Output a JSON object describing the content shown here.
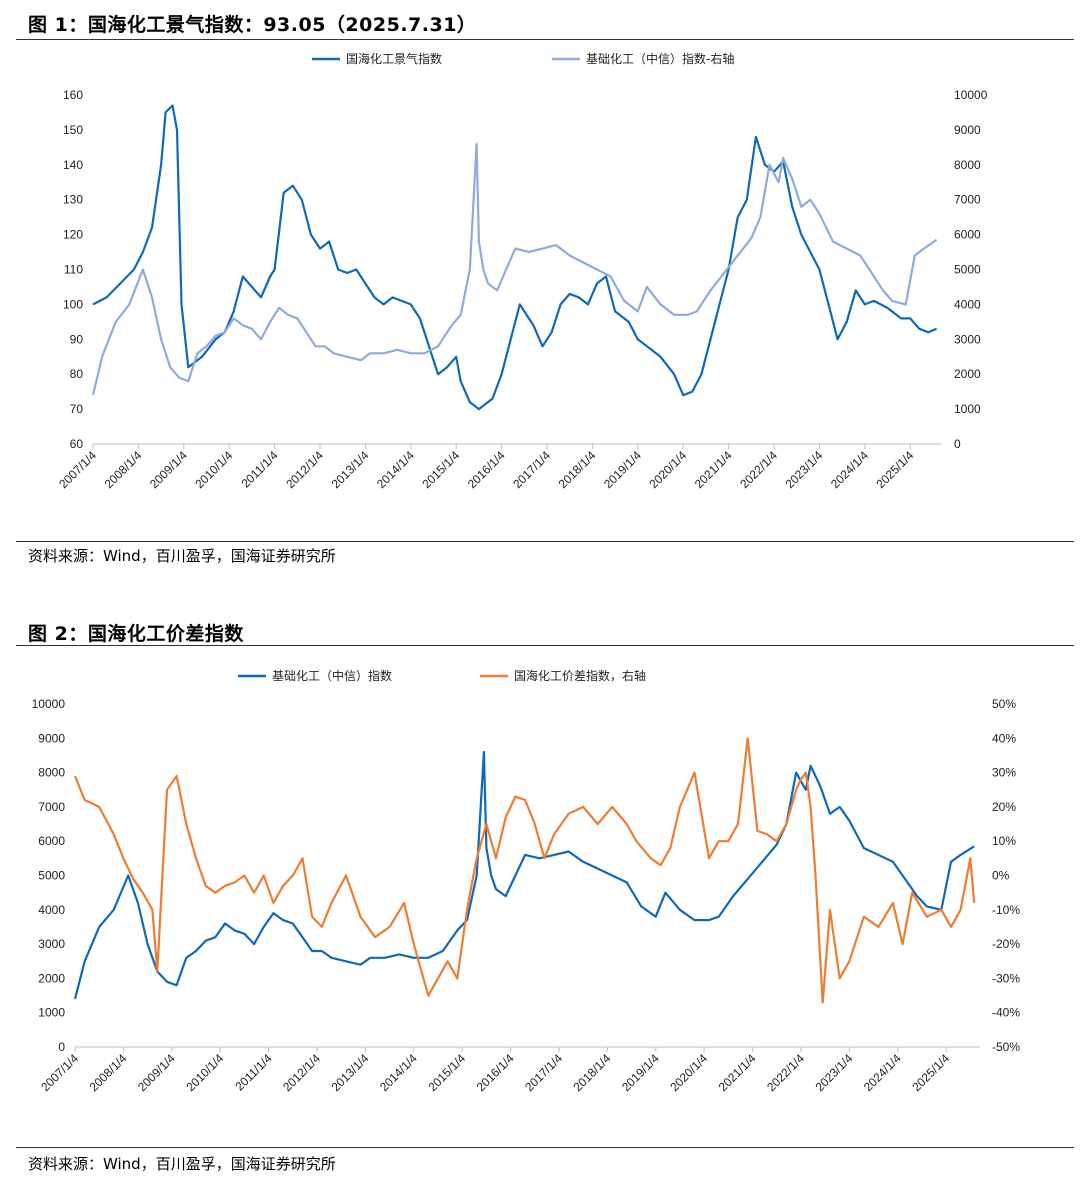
{
  "figure1": {
    "title": "图 1：国海化工景气指数：93.05（2025.7.31）",
    "source": "资料来源：Wind，百川盈孚，国海证券研究所"
  },
  "figure2": {
    "title": "图 2：国海化工价差指数",
    "source": "资料来源：Wind，百川盈孚，国海证券研究所"
  },
  "colors": {
    "dark_blue": "#1068b8",
    "light_blue": "#8faadc",
    "orange": "#ed7d31",
    "axis": "#bfbfbf"
  },
  "chart_data": [
    {
      "type": "line",
      "title": "图 1：国海化工景气指数：93.05（2025.7.31）",
      "categories": [
        "2007/1/4",
        "2008/1/4",
        "2009/1/4",
        "2010/1/4",
        "2011/1/4",
        "2012/1/4",
        "2013/1/4",
        "2014/1/4",
        "2015/1/4",
        "2016/1/4",
        "2017/1/4",
        "2018/1/4",
        "2019/1/4",
        "2020/1/4",
        "2021/1/4",
        "2022/1/4",
        "2023/1/4",
        "2024/1/4",
        "2025/1/4"
      ],
      "y_left": {
        "ylim": [
          60,
          160
        ],
        "ticks": [
          60,
          70,
          80,
          90,
          100,
          110,
          120,
          130,
          140,
          150,
          160
        ]
      },
      "y_right": {
        "ylim": [
          0,
          10000
        ],
        "ticks": [
          0,
          1000,
          2000,
          3000,
          4000,
          5000,
          6000,
          7000,
          8000,
          9000,
          10000
        ]
      },
      "legend_position": "top",
      "series": [
        {
          "name": "国海化工景气指数",
          "axis": "left",
          "color": "#1068b8",
          "x": [
            2007.0,
            2007.3,
            2007.6,
            2007.9,
            2008.1,
            2008.3,
            2008.5,
            2008.6,
            2008.75,
            2008.85,
            2008.95,
            2009.1,
            2009.4,
            2009.7,
            2009.9,
            2010.1,
            2010.3,
            2010.5,
            2010.7,
            2010.9,
            2011.0,
            2011.2,
            2011.4,
            2011.6,
            2011.8,
            2012.0,
            2012.2,
            2012.4,
            2012.6,
            2012.8,
            2013.0,
            2013.2,
            2013.4,
            2013.6,
            2013.8,
            2014.0,
            2014.2,
            2014.4,
            2014.6,
            2014.8,
            2015.0,
            2015.1,
            2015.3,
            2015.5,
            2015.8,
            2016.0,
            2016.2,
            2016.4,
            2016.7,
            2016.9,
            2017.1,
            2017.3,
            2017.5,
            2017.7,
            2017.9,
            2018.1,
            2018.3,
            2018.5,
            2018.8,
            2019.0,
            2019.2,
            2019.5,
            2019.8,
            2020.0,
            2020.2,
            2020.4,
            2020.6,
            2020.8,
            2021.0,
            2021.2,
            2021.4,
            2021.6,
            2021.8,
            2022.0,
            2022.2,
            2022.4,
            2022.6,
            2022.8,
            2023.0,
            2023.2,
            2023.4,
            2023.6,
            2023.8,
            2024.0,
            2024.2,
            2024.5,
            2024.8,
            2025.0,
            2025.2,
            2025.4,
            2025.58
          ],
          "y": [
            100,
            102,
            106,
            110,
            115,
            122,
            140,
            155,
            157,
            150,
            100,
            82,
            85,
            90,
            92,
            98,
            108,
            105,
            102,
            108,
            110,
            132,
            134,
            130,
            120,
            116,
            118,
            110,
            109,
            110,
            106,
            102,
            100,
            102,
            101,
            100,
            96,
            88,
            80,
            82,
            85,
            78,
            72,
            70,
            73,
            80,
            90,
            100,
            94,
            88,
            92,
            100,
            103,
            102,
            100,
            106,
            108,
            98,
            95,
            90,
            88,
            85,
            80,
            74,
            75,
            80,
            90,
            100,
            110,
            125,
            130,
            148,
            140,
            138,
            141,
            128,
            120,
            115,
            110,
            100,
            90,
            95,
            104,
            100,
            101,
            99,
            96,
            96,
            93,
            92,
            93.05
          ]
        },
        {
          "name": "基础化工（中信）指数-右轴",
          "axis": "right",
          "color": "#8faadc",
          "x": [
            2007.0,
            2007.2,
            2007.5,
            2007.8,
            2008.1,
            2008.3,
            2008.5,
            2008.7,
            2008.9,
            2009.1,
            2009.3,
            2009.5,
            2009.7,
            2009.9,
            2010.1,
            2010.3,
            2010.5,
            2010.7,
            2010.9,
            2011.1,
            2011.3,
            2011.5,
            2011.7,
            2011.9,
            2012.1,
            2012.3,
            2012.6,
            2012.9,
            2013.1,
            2013.4,
            2013.7,
            2014.0,
            2014.3,
            2014.6,
            2014.9,
            2015.1,
            2015.3,
            2015.45,
            2015.5,
            2015.6,
            2015.7,
            2015.9,
            2016.1,
            2016.3,
            2016.6,
            2016.9,
            2017.2,
            2017.5,
            2017.8,
            2018.1,
            2018.4,
            2018.7,
            2019.0,
            2019.2,
            2019.5,
            2019.8,
            2020.1,
            2020.3,
            2020.6,
            2020.9,
            2021.2,
            2021.5,
            2021.7,
            2021.9,
            2022.1,
            2022.2,
            2022.4,
            2022.6,
            2022.8,
            2023.0,
            2023.3,
            2023.6,
            2023.9,
            2024.1,
            2024.4,
            2024.6,
            2024.9,
            2025.1,
            2025.3,
            2025.58
          ],
          "y": [
            1400,
            2500,
            3500,
            4000,
            5000,
            4200,
            3000,
            2200,
            1900,
            1800,
            2600,
            2800,
            3100,
            3200,
            3600,
            3400,
            3300,
            3000,
            3500,
            3900,
            3700,
            3600,
            3200,
            2800,
            2800,
            2600,
            2500,
            2400,
            2600,
            2600,
            2700,
            2600,
            2600,
            2800,
            3400,
            3700,
            5000,
            8600,
            5800,
            5000,
            4600,
            4400,
            5000,
            5600,
            5500,
            5600,
            5700,
            5400,
            5200,
            5000,
            4800,
            4100,
            3800,
            4500,
            4000,
            3700,
            3700,
            3800,
            4400,
            4900,
            5400,
            5900,
            6500,
            8000,
            7500,
            8200,
            7600,
            6800,
            7000,
            6600,
            5800,
            5600,
            5400,
            5000,
            4400,
            4100,
            4000,
            5400,
            5600,
            5850
          ]
        }
      ]
    },
    {
      "type": "line",
      "title": "图 2：国海化工价差指数",
      "categories": [
        "2007/1/4",
        "2008/1/4",
        "2009/1/4",
        "2010/1/4",
        "2011/1/4",
        "2012/1/4",
        "2013/1/4",
        "2014/1/4",
        "2015/1/4",
        "2016/1/4",
        "2017/1/4",
        "2018/1/4",
        "2019/1/4",
        "2020/1/4",
        "2021/1/4",
        "2022/1/4",
        "2023/1/4",
        "2024/1/4",
        "2025/1/4"
      ],
      "y_left": {
        "ylim": [
          0,
          10000
        ],
        "ticks": [
          0,
          1000,
          2000,
          3000,
          4000,
          5000,
          6000,
          7000,
          8000,
          9000,
          10000
        ]
      },
      "y_right": {
        "ylim": [
          -50,
          50
        ],
        "ticks": [
          "-50%",
          "-40%",
          "-30%",
          "-20%",
          "-10%",
          "0%",
          "10%",
          "20%",
          "30%",
          "40%",
          "50%"
        ]
      },
      "legend_position": "top",
      "series": [
        {
          "name": "基础化工（中信）指数",
          "axis": "left",
          "color": "#1068b8",
          "x": [
            2007.0,
            2007.2,
            2007.5,
            2007.8,
            2008.1,
            2008.3,
            2008.5,
            2008.7,
            2008.9,
            2009.1,
            2009.3,
            2009.5,
            2009.7,
            2009.9,
            2010.1,
            2010.3,
            2010.5,
            2010.7,
            2010.9,
            2011.1,
            2011.3,
            2011.5,
            2011.7,
            2011.9,
            2012.1,
            2012.3,
            2012.6,
            2012.9,
            2013.1,
            2013.4,
            2013.7,
            2014.0,
            2014.3,
            2014.6,
            2014.9,
            2015.1,
            2015.3,
            2015.45,
            2015.5,
            2015.6,
            2015.7,
            2015.9,
            2016.1,
            2016.3,
            2016.6,
            2016.9,
            2017.2,
            2017.5,
            2017.8,
            2018.1,
            2018.4,
            2018.7,
            2019.0,
            2019.2,
            2019.5,
            2019.8,
            2020.1,
            2020.3,
            2020.6,
            2020.9,
            2021.2,
            2021.5,
            2021.7,
            2021.9,
            2022.1,
            2022.2,
            2022.4,
            2022.6,
            2022.8,
            2023.0,
            2023.3,
            2023.6,
            2023.9,
            2024.1,
            2024.4,
            2024.6,
            2024.9,
            2025.1,
            2025.3,
            2025.58
          ],
          "y": [
            1400,
            2500,
            3500,
            4000,
            5000,
            4200,
            3000,
            2200,
            1900,
            1800,
            2600,
            2800,
            3100,
            3200,
            3600,
            3400,
            3300,
            3000,
            3500,
            3900,
            3700,
            3600,
            3200,
            2800,
            2800,
            2600,
            2500,
            2400,
            2600,
            2600,
            2700,
            2600,
            2600,
            2800,
            3400,
            3700,
            5000,
            8600,
            5800,
            5000,
            4600,
            4400,
            5000,
            5600,
            5500,
            5600,
            5700,
            5400,
            5200,
            5000,
            4800,
            4100,
            3800,
            4500,
            4000,
            3700,
            3700,
            3800,
            4400,
            4900,
            5400,
            5900,
            6500,
            8000,
            7500,
            8200,
            7600,
            6800,
            7000,
            6600,
            5800,
            5600,
            5400,
            5000,
            4400,
            4100,
            4000,
            5400,
            5600,
            5850
          ]
        },
        {
          "name": "国海化工价差指数，右轴",
          "axis": "right",
          "color": "#ed7d31",
          "x": [
            2007.0,
            2007.2,
            2007.5,
            2007.8,
            2008.0,
            2008.2,
            2008.4,
            2008.6,
            2008.7,
            2008.9,
            2009.1,
            2009.3,
            2009.5,
            2009.7,
            2009.9,
            2010.1,
            2010.3,
            2010.5,
            2010.7,
            2010.9,
            2011.1,
            2011.3,
            2011.5,
            2011.7,
            2011.9,
            2012.1,
            2012.3,
            2012.6,
            2012.9,
            2013.2,
            2013.5,
            2013.8,
            2014.0,
            2014.3,
            2014.5,
            2014.7,
            2014.9,
            2015.1,
            2015.3,
            2015.5,
            2015.7,
            2015.9,
            2016.1,
            2016.3,
            2016.5,
            2016.7,
            2016.9,
            2017.2,
            2017.5,
            2017.8,
            2018.1,
            2018.4,
            2018.6,
            2018.9,
            2019.1,
            2019.3,
            2019.5,
            2019.8,
            2020.1,
            2020.3,
            2020.5,
            2020.7,
            2020.9,
            2021.1,
            2021.3,
            2021.5,
            2021.7,
            2021.9,
            2022.0,
            2022.1,
            2022.2,
            2022.3,
            2022.45,
            2022.6,
            2022.8,
            2023.0,
            2023.3,
            2023.6,
            2023.9,
            2024.1,
            2024.3,
            2024.6,
            2024.9,
            2025.1,
            2025.3,
            2025.5,
            2025.58
          ],
          "y": [
            29,
            22,
            20,
            12,
            5,
            -1,
            -5,
            -10,
            -28,
            25,
            29,
            15,
            5,
            -3,
            -5,
            -3,
            -2,
            0,
            -5,
            0,
            -8,
            -3,
            0,
            5,
            -12,
            -15,
            -8,
            0,
            -12,
            -18,
            -15,
            -8,
            -20,
            -35,
            -30,
            -25,
            -30,
            -10,
            5,
            15,
            5,
            17,
            23,
            22,
            15,
            5,
            12,
            18,
            20,
            15,
            20,
            15,
            10,
            5,
            3,
            8,
            20,
            30,
            5,
            10,
            10,
            15,
            40,
            13,
            12,
            10,
            15,
            25,
            28,
            30,
            20,
            0,
            -37,
            -10,
            -30,
            -25,
            -12,
            -15,
            -8,
            -20,
            -5,
            -12,
            -10,
            -15,
            -10,
            5,
            -8
          ]
        }
      ]
    }
  ]
}
